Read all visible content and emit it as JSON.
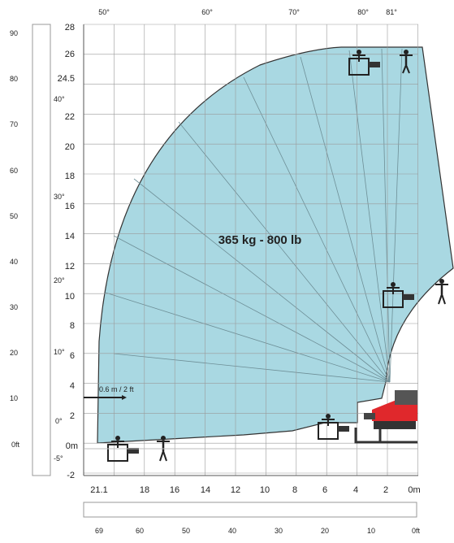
{
  "capacity_label": "365 kg - 800 lb",
  "arm_extension_label": "0.6 m / 2 ft",
  "top_angle_labels": [
    "50°",
    "60°",
    "70°",
    "80°",
    "81°"
  ],
  "side_angle_labels": [
    "40°",
    "30°",
    "20°",
    "10°",
    "0°",
    "-5°"
  ],
  "height_m_ticks": [
    "28",
    "26",
    "24.5",
    "22",
    "20",
    "18",
    "16",
    "14",
    "12",
    "10",
    "8",
    "6",
    "4",
    "2",
    "0m",
    "-2"
  ],
  "height_ft_ticks": [
    "90",
    "80",
    "70",
    "60",
    "50",
    "40",
    "30",
    "20",
    "10",
    "0ft"
  ],
  "reach_m_ticks": [
    "21.1",
    "18",
    "16",
    "14",
    "12",
    "10",
    "8",
    "6",
    "4",
    "2",
    "0m"
  ],
  "reach_ft_ticks": [
    "69",
    "60",
    "50",
    "40",
    "30",
    "20",
    "10",
    "0ft"
  ],
  "colors": {
    "envelope_fill": "#a9d8e2",
    "envelope_stroke": "#333333",
    "grid": "#9a9a9a",
    "machine_red": "#e0282c",
    "machine_dark": "#333333"
  },
  "icons": [
    "worker-figure-icon",
    "platform-basket-icon",
    "telehandler-machine-icon"
  ]
}
